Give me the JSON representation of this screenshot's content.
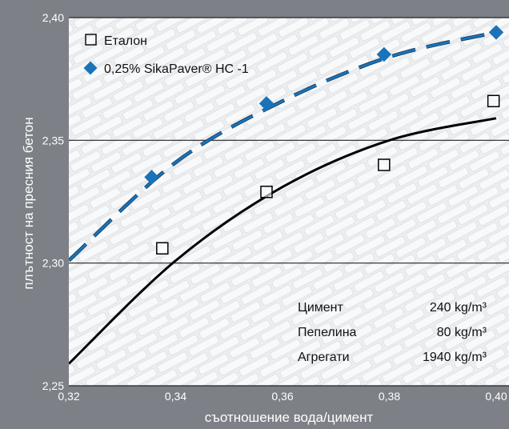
{
  "chart_data": {
    "type": "scatter",
    "title": "",
    "xlabel": "съотношение вода/цимент",
    "ylabel": "плътност на пресния бетон",
    "xlim": [
      0.32,
      0.4
    ],
    "ylim": [
      2.25,
      2.4
    ],
    "x_ticks": [
      "0,32",
      "0,34",
      "0,36",
      "0,38",
      "0,40"
    ],
    "y_ticks": [
      "2,25",
      "2,30",
      "2,35",
      "2,40"
    ],
    "grid": "horizontal",
    "legend_position": "top-left",
    "series": [
      {
        "name": "Еталон",
        "marker": "square",
        "color": "#000000",
        "points": [
          [
            0.3375,
            2.306
          ],
          [
            0.357,
            2.329
          ],
          [
            0.379,
            2.34
          ],
          [
            0.3995,
            2.366
          ]
        ],
        "trend": {
          "style": "solid",
          "color": "#000000",
          "points": [
            [
              0.32,
              2.259
            ],
            [
              0.34,
              2.301
            ],
            [
              0.36,
              2.331
            ],
            [
              0.38,
              2.35
            ],
            [
              0.4,
              2.359
            ]
          ]
        }
      },
      {
        "name": "0,25% SikaPaver® HC-1",
        "marker": "diamond",
        "color": "#1a73b8",
        "points": [
          [
            0.3355,
            2.335
          ],
          [
            0.357,
            2.365
          ],
          [
            0.379,
            2.385
          ],
          [
            0.4,
            2.394
          ]
        ],
        "trend": {
          "style": "dashed",
          "color": "#1a73b8",
          "points": [
            [
              0.32,
              2.301
            ],
            [
              0.34,
              2.341
            ],
            [
              0.36,
              2.366
            ],
            [
              0.38,
              2.384
            ],
            [
              0.4,
              2.394
            ]
          ]
        }
      }
    ],
    "legend": [
      {
        "label": "Еталон"
      },
      {
        "label": "0,25% SikaPaver® HC -1"
      }
    ],
    "annotations": [
      {
        "name": "Цимент",
        "value": "240 kg/m³"
      },
      {
        "name": "Пепелина",
        "value": "80 kg/m³"
      },
      {
        "name": "Агрегати",
        "value": "1940 kg/m³"
      }
    ]
  },
  "colors": {
    "frame": "#7d8187",
    "plot_bg": "#e9ebee",
    "brick": "#f7f8fa",
    "grid": "#1f2328",
    "accent": "#1a73b8"
  }
}
